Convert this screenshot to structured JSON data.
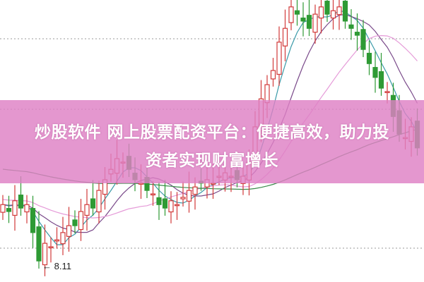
{
  "banner": {
    "line1": "炒股软件 网上股票配资平台：便捷高效，助力投",
    "line2": "资者实现财富增长"
  },
  "chart_data": {
    "type": "candlestick",
    "title": "",
    "closes": [
      9.66,
      9.48,
      9.76,
      9.57,
      9.66,
      8.93,
      8.19,
      8.65,
      8.56,
      8.74,
      8.93,
      9.11,
      9.11,
      9.48,
      9.66,
      9.57,
      10.03,
      10.31,
      10.58,
      10.86,
      10.77,
      10.58,
      10.31,
      10.22,
      10.03,
      9.94,
      9.66,
      9.57,
      9.76,
      9.66,
      9.85,
      10.03,
      10.12,
      10.22,
      10.31,
      10.22,
      10.4,
      10.49,
      10.4,
      10.31,
      10.4,
      10.77,
      11.69,
      12.42,
      12.79,
      13.16,
      13.9,
      14.26,
      14.82,
      14.63,
      14.45,
      14.26,
      14.63,
      14.82,
      14.63,
      14.72,
      14.82,
      14.45,
      14.26,
      14.08,
      13.71,
      13.34,
      12.98,
      12.7,
      12.61,
      11.96,
      11.5,
      11.41,
      11.69,
      11.14
    ],
    "moving_averages": [
      5,
      10,
      20,
      60
    ],
    "low_marker": "8.11",
    "grid": "dotted horizontal",
    "colors": {
      "up": "#d23a3a",
      "down": "#2e9a34",
      "ma5": "#3a9aa8",
      "ma10": "#7a4a8a",
      "ma20": "#e59ad8",
      "ma60": "#3a8a4a",
      "banner": "#de80c4"
    }
  }
}
